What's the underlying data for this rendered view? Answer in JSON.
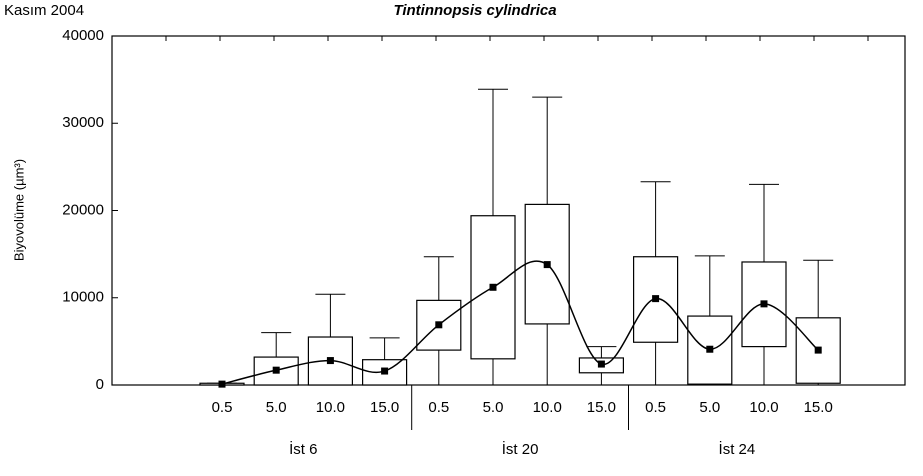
{
  "chart_data": {
    "type": "box",
    "title": "Tintinnopsis cylindrica",
    "subtitle": "Kasım 2004",
    "y_label": "Biyovolüme (µm³)",
    "categories": [
      "0.5",
      "5.0",
      "10.0",
      "15.0",
      "0.5",
      "5.0",
      "10.0",
      "15.0",
      "0.5",
      "5.0",
      "10.0",
      "15.0"
    ],
    "groups": [
      "İst 6",
      "İst 20",
      "İst 24"
    ],
    "low": [
      0,
      0,
      0,
      0,
      0,
      0,
      0,
      0,
      0,
      0,
      0,
      0
    ],
    "q1": [
      0,
      0,
      0,
      0,
      4000,
      3000,
      7000,
      1400,
      4900,
      100,
      4400,
      200
    ],
    "q3": [
      200,
      3200,
      5500,
      2900,
      9700,
      19400,
      20700,
      3100,
      14700,
      7900,
      14100,
      7700
    ],
    "high": [
      200,
      6000,
      10400,
      5400,
      14700,
      33900,
      33000,
      4400,
      23300,
      14800,
      23000,
      14300
    ],
    "mean": [
      100,
      1700,
      2800,
      1600,
      6900,
      11200,
      13800,
      2400,
      9900,
      4100,
      9300,
      4000
    ],
    "color": "#000000",
    "ylim": [
      0,
      40000
    ],
    "yticks": [
      0,
      10000,
      20000,
      30000,
      40000
    ]
  }
}
